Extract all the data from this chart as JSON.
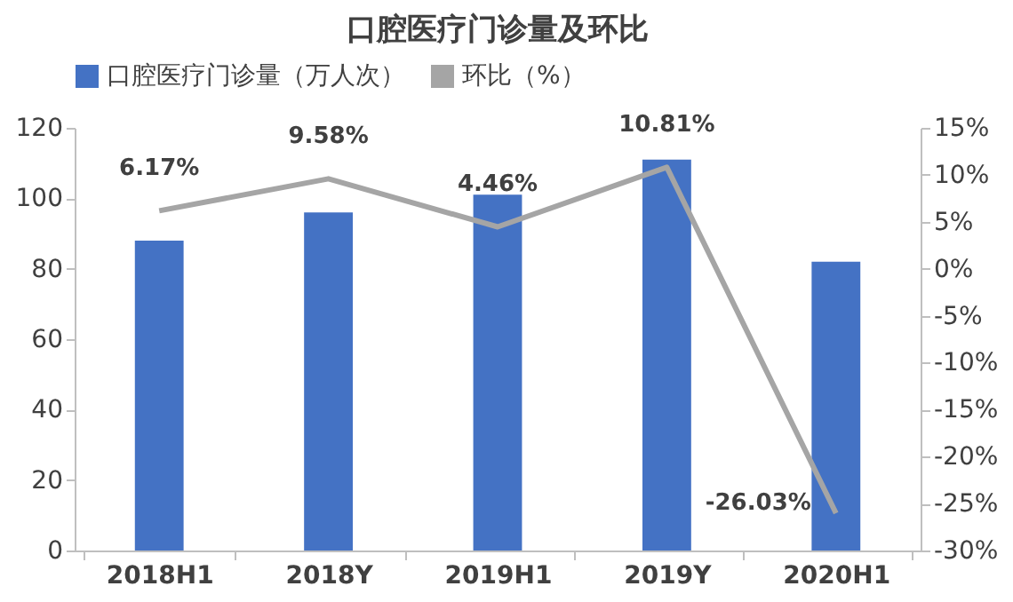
{
  "chart_data": {
    "type": "bar",
    "title": "口腔医疗门诊量及环比",
    "categories": [
      "2018H1",
      "2018Y",
      "2019H1",
      "2019Y",
      "2020H1"
    ],
    "series": [
      {
        "name": "口腔医疗门诊量（万人次）",
        "color": "#4472c4",
        "values": [
          88,
          96,
          101,
          111,
          82
        ]
      },
      {
        "name": "环比（%）",
        "type": "line",
        "axis": "y2",
        "color": "#a5a5a5",
        "values": [
          6.17,
          9.58,
          4.46,
          10.81,
          -26.03
        ],
        "value_labels": [
          "6.17%",
          "9.58%",
          "4.46%",
          "10.81%",
          "-26.03%"
        ]
      }
    ],
    "ylim": [
      0,
      120
    ],
    "yticks": [
      0,
      20,
      40,
      60,
      80,
      100,
      120
    ],
    "y2lim": [
      -30,
      15
    ],
    "y2ticks": [
      {
        "value": 15,
        "label": "15%"
      },
      {
        "value": 10,
        "label": "10%"
      },
      {
        "value": 5,
        "label": "5%"
      },
      {
        "value": 0,
        "label": "0%"
      },
      {
        "value": -5,
        "label": "-5%"
      },
      {
        "value": -10,
        "label": "-10%"
      },
      {
        "value": -15,
        "label": "-15%"
      },
      {
        "value": -20,
        "label": "-20%"
      },
      {
        "value": -25,
        "label": "-25%"
      },
      {
        "value": -30,
        "label": "-30%"
      }
    ],
    "legend": "top",
    "grid": false,
    "marker": "none",
    "line_style": "solid"
  }
}
